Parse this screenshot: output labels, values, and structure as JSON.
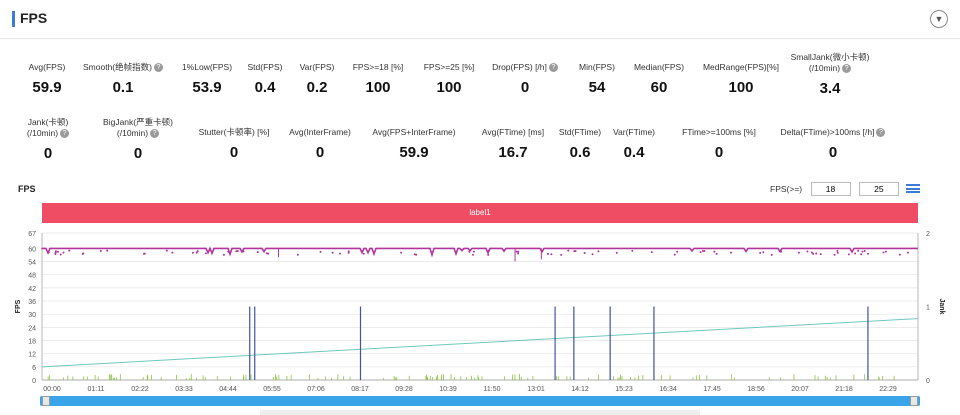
{
  "header": {
    "title": "FPS",
    "collapse_icon": "chevron-down-icon"
  },
  "stats_row1": [
    {
      "label": "Avg(FPS)",
      "value": "59.9",
      "help": false
    },
    {
      "label": "Smooth(绝帧指数)",
      "value": "0.1",
      "help": true
    },
    {
      "label": "1%Low(FPS)",
      "value": "53.9",
      "help": false
    },
    {
      "label": "Std(FPS)",
      "value": "0.4",
      "help": false
    },
    {
      "label": "Var(FPS)",
      "value": "0.2",
      "help": false
    },
    {
      "label": "FPS>=18 [%]",
      "value": "100",
      "help": false
    },
    {
      "label": "FPS>=25 [%]",
      "value": "100",
      "help": false
    },
    {
      "label": "Drop(FPS) [/h]",
      "value": "0",
      "help": true
    },
    {
      "label": "Min(FPS)",
      "value": "54",
      "help": false
    },
    {
      "label": "Median(FPS)",
      "value": "60",
      "help": false
    },
    {
      "label": "MedRange(FPS)[%]",
      "value": "100",
      "help": false
    },
    {
      "label": "SmallJank(微小卡顿)",
      "label2": "(/10min)",
      "value": "3.4",
      "help": true
    }
  ],
  "stats_row2": [
    {
      "label": "Jank(卡顿)",
      "label2": "(/10min)",
      "value": "0",
      "help": true
    },
    {
      "label": "BigJank(严重卡顿)",
      "label2": "(/10min)",
      "value": "0",
      "help": true
    },
    {
      "label": "Stutter(卡顿率) [%]",
      "value": "0",
      "help": false
    },
    {
      "label": "Avg(InterFrame)",
      "value": "0",
      "help": false
    },
    {
      "label": "Avg(FPS+InterFrame)",
      "value": "59.9",
      "help": false
    },
    {
      "label": "Avg(FTime) [ms]",
      "value": "16.7",
      "help": false
    },
    {
      "label": "Std(FTime)",
      "value": "0.6",
      "help": false
    },
    {
      "label": "Var(FTime)",
      "value": "0.4",
      "help": false
    },
    {
      "label": "FTime>=100ms [%]",
      "value": "0",
      "help": false
    },
    {
      "label": "Delta(FTime)>100ms [/h]",
      "value": "0",
      "help": true
    }
  ],
  "chart_header": {
    "title": "FPS",
    "fps_filter_label": "FPS(>=)",
    "fps_filter_value1": "18",
    "fps_filter_value2": "25",
    "menu_icon": "bars-icon"
  },
  "label_band": "label1",
  "chart_data": {
    "type": "line",
    "ylabel": "FPS",
    "y2label": "Jank",
    "ylim": [
      0,
      67
    ],
    "y2lim": [
      0,
      2
    ],
    "yticks": [
      0,
      6,
      12,
      18,
      24,
      30,
      36,
      42,
      48,
      54,
      60,
      67
    ],
    "y2ticks": [
      0,
      1,
      2
    ],
    "xticks": [
      "00:00",
      "01:11",
      "02:22",
      "03:33",
      "04:44",
      "05:55",
      "07:06",
      "08:17",
      "09:28",
      "10:39",
      "11:50",
      "13:01",
      "14:12",
      "15:23",
      "16:34",
      "17:45",
      "18:56",
      "20:07",
      "21:18",
      "22:29"
    ],
    "fps_level": 60,
    "fps_min_dips": [
      54,
      55,
      56
    ],
    "trend_start": 6,
    "trend_end": 28,
    "jank_spike_times": [
      "05:32",
      "05:40",
      "08:29",
      "13:40",
      "14:10",
      "15:08",
      "16:18",
      "22:00"
    ],
    "jank_spike_value": 1,
    "colors": {
      "fps": "#b0339e",
      "trend": "#6fc8be",
      "jank": "#3f53a8",
      "small": "#8cc43f",
      "band": "#ee4d63",
      "slider": "#39a4e8"
    }
  }
}
